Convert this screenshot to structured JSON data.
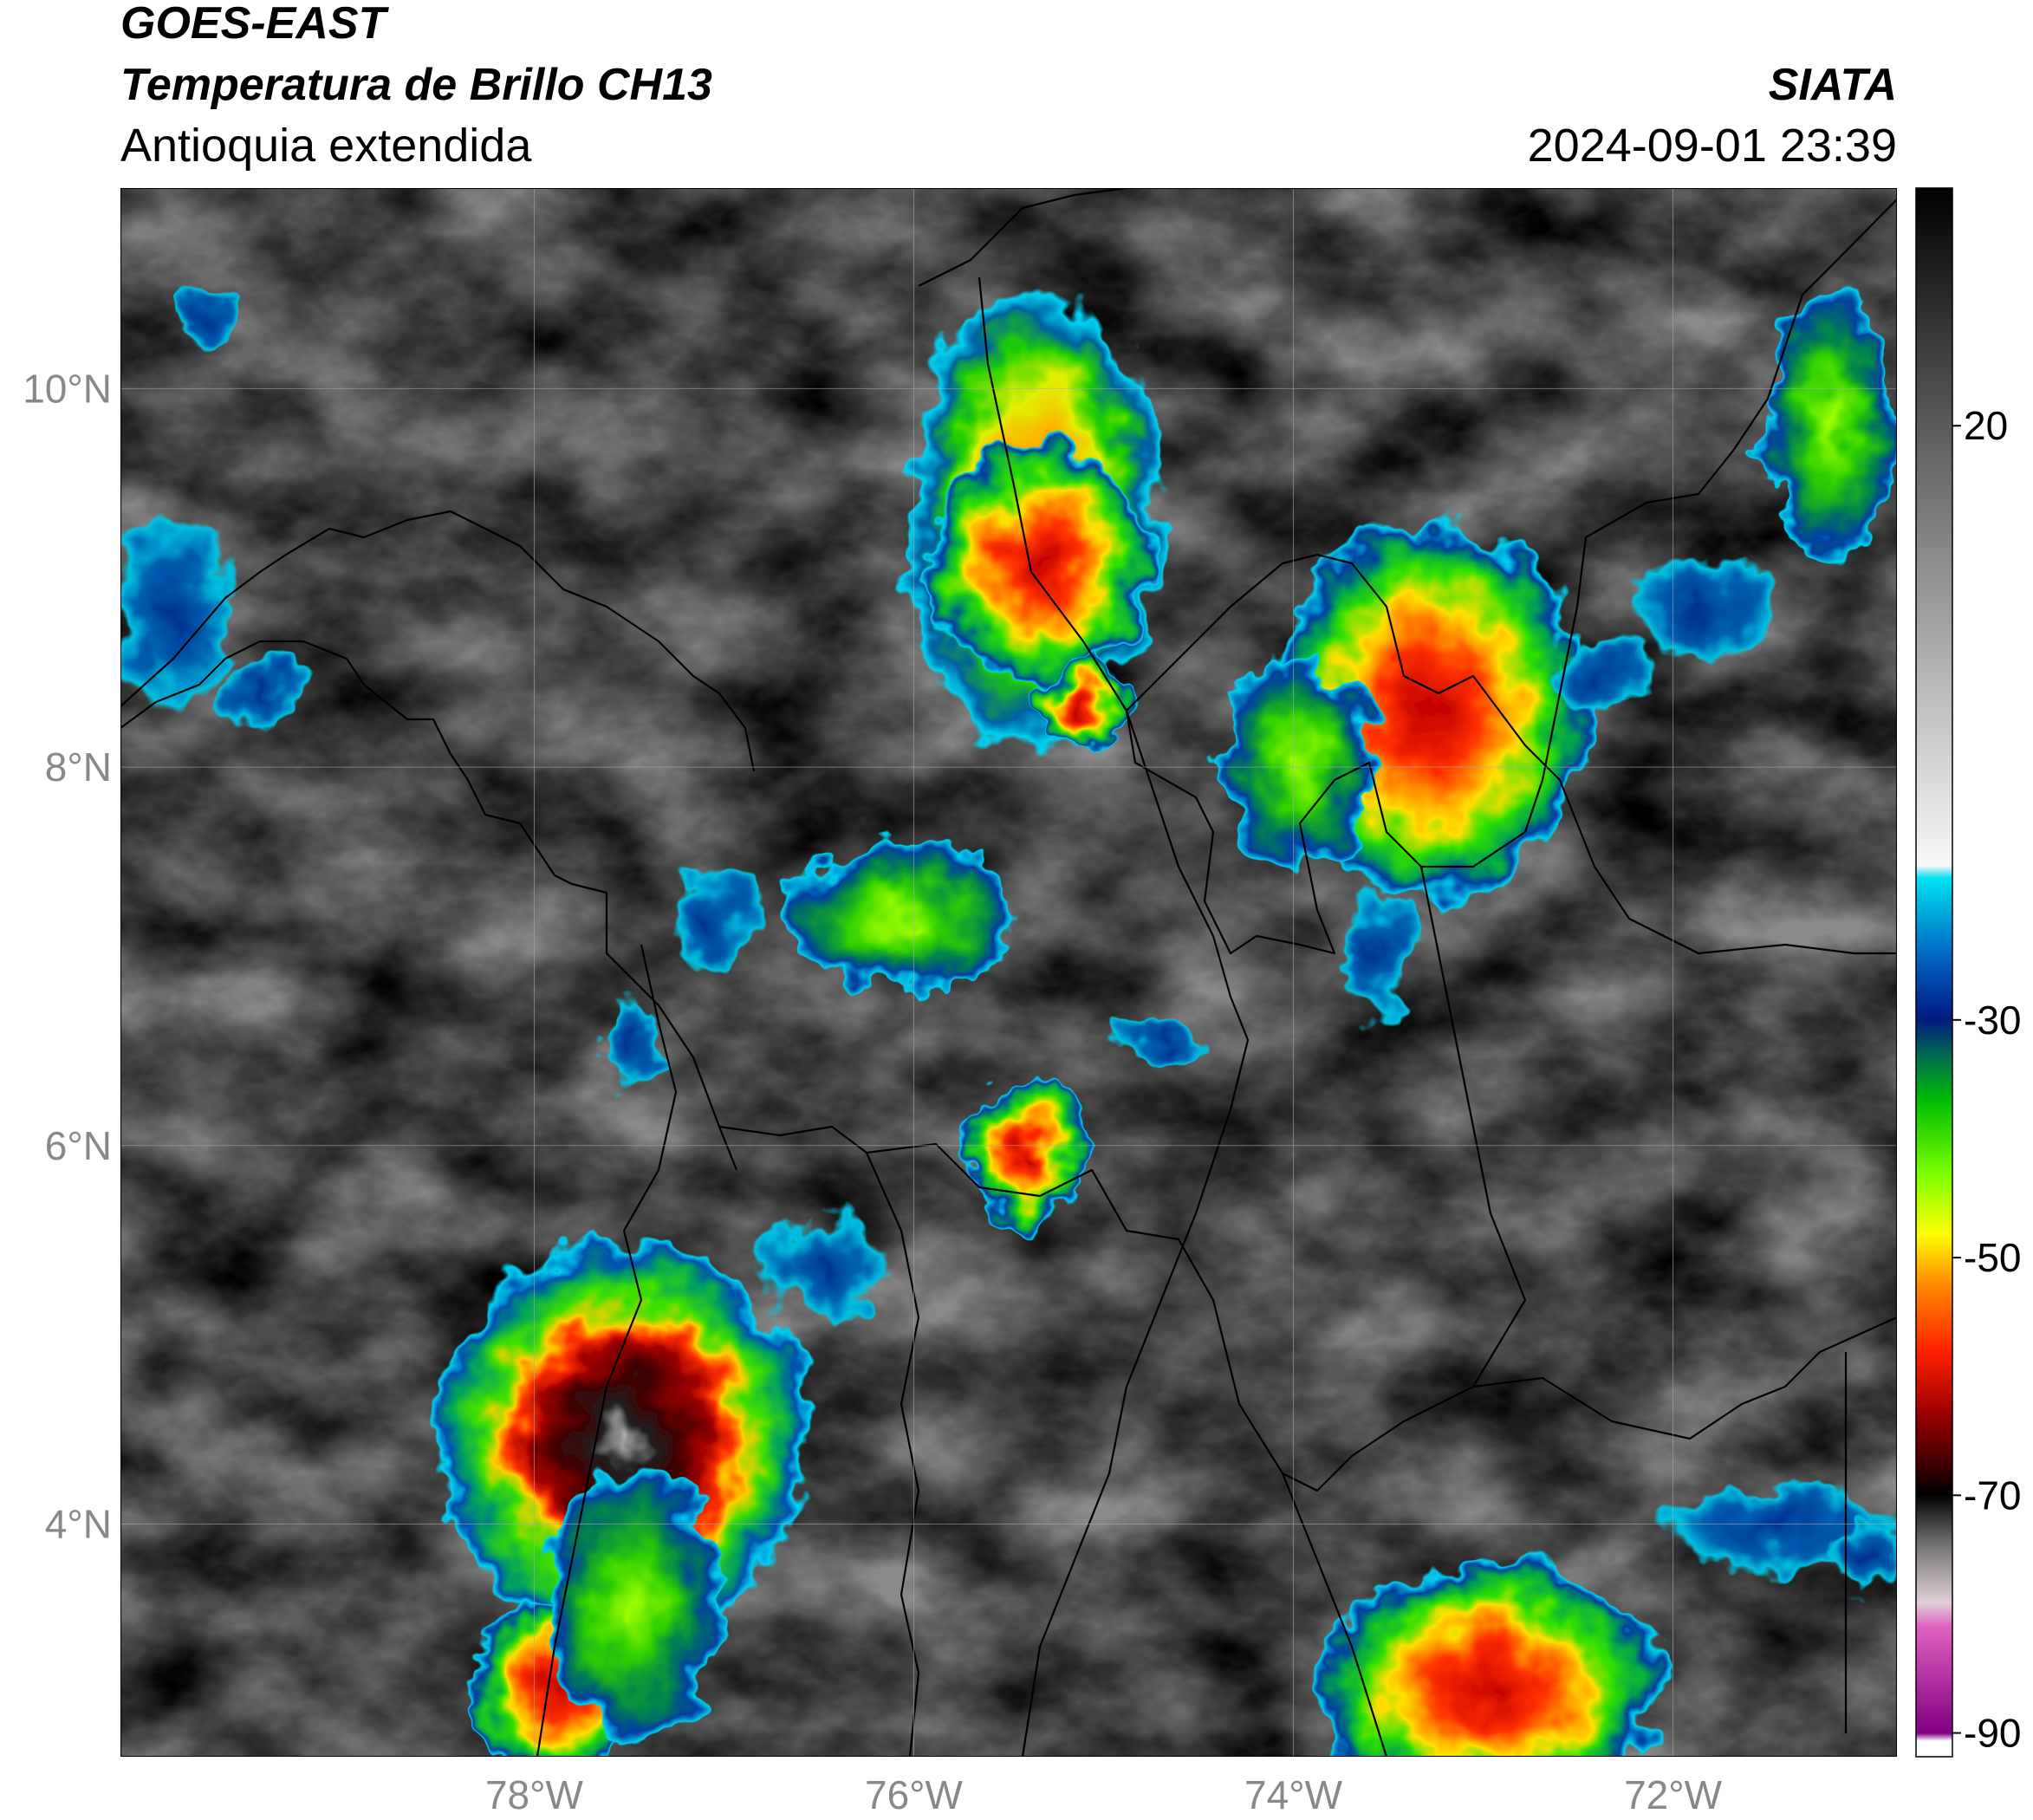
{
  "header": {
    "title": "GOES-EAST",
    "subtitle": "Temperatura de Brillo CH13",
    "region": "Antioquia extendida",
    "source": "SIATA",
    "datetime": "2024-09-01 23:39"
  },
  "map": {
    "xlim": [
      -80.18,
      -70.82
    ],
    "ylim": [
      2.77,
      11.06
    ],
    "xticks": [
      {
        "value": -78,
        "label": "78°W"
      },
      {
        "value": -76,
        "label": "76°W"
      },
      {
        "value": -74,
        "label": "74°W"
      },
      {
        "value": -72,
        "label": "72°W"
      }
    ],
    "yticks": [
      {
        "value": 4,
        "label": "4°N"
      },
      {
        "value": 6,
        "label": "6°N"
      },
      {
        "value": 8,
        "label": "8°N"
      },
      {
        "value": 10,
        "label": "10°N"
      }
    ],
    "grid": true
  },
  "colorbar": {
    "clim": [
      -92,
      40
    ],
    "ticks": [
      -90,
      -70,
      -50,
      -30,
      20
    ]
  }
}
